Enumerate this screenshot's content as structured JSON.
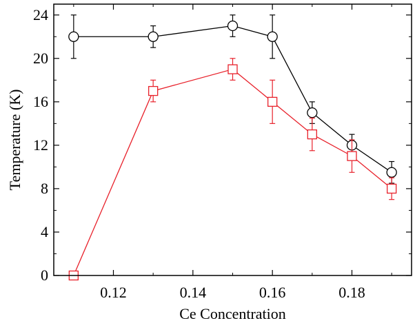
{
  "chart_data": {
    "type": "line",
    "title": "",
    "xlabel": "Ce Concentration",
    "ylabel": "Temperature (K)",
    "xlim": [
      0.105,
      0.195
    ],
    "ylim": [
      0,
      25
    ],
    "x_ticks": [
      0.12,
      0.14,
      0.16,
      0.18
    ],
    "x_tick_labels": [
      "0.12",
      "0.14",
      "0.16",
      "0.18"
    ],
    "y_ticks": [
      0,
      4,
      8,
      12,
      16,
      20,
      24
    ],
    "y_tick_labels": [
      "0",
      "4",
      "8",
      "12",
      "16",
      "20",
      "24"
    ],
    "grid": false,
    "legend": "none",
    "series": [
      {
        "color": "#000000",
        "marker": "circle",
        "points": [
          {
            "x": 0.11,
            "y": 22,
            "err": 2
          },
          {
            "x": 0.13,
            "y": 22,
            "err": 1
          },
          {
            "x": 0.15,
            "y": 23,
            "err": 1
          },
          {
            "x": 0.16,
            "y": 22,
            "err": 2
          },
          {
            "x": 0.17,
            "y": 15,
            "err": 1
          },
          {
            "x": 0.18,
            "y": 12,
            "err": 1
          },
          {
            "x": 0.19,
            "y": 9.5,
            "err": 1
          }
        ]
      },
      {
        "color": "#e8202a",
        "marker": "square",
        "points": [
          {
            "x": 0.11,
            "y": 0,
            "err": 0
          },
          {
            "x": 0.13,
            "y": 17,
            "err": 1
          },
          {
            "x": 0.15,
            "y": 19,
            "err": 1
          },
          {
            "x": 0.16,
            "y": 16,
            "err": 2
          },
          {
            "x": 0.17,
            "y": 13,
            "err": 1.5
          },
          {
            "x": 0.18,
            "y": 11,
            "err": 1.5
          },
          {
            "x": 0.19,
            "y": 8,
            "err": 1
          }
        ]
      }
    ]
  }
}
